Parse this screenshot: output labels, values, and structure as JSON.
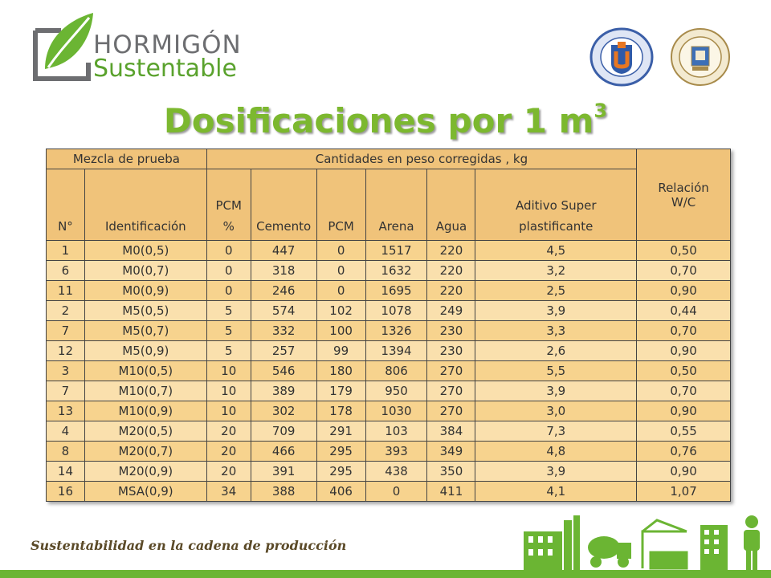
{
  "brand": {
    "line1": "HORMIGÓN",
    "line2": "Sustentable"
  },
  "seals": [
    {
      "name": "Universidad Católica del Norte",
      "text": "UNIVERSIDAD CATOLICA DEL NORTE"
    },
    {
      "name": "Universidad Politécnica de Madrid",
      "text": "UNIVERSIDAD POLITECNICA"
    }
  ],
  "title": {
    "text": "Dosificaciones por 1 m",
    "sup": "3"
  },
  "table": {
    "group_headers": {
      "mezcla": "Mezcla de prueba",
      "cantidades": "Cantidades en peso corregidas , kg"
    },
    "columns": {
      "n": "N°",
      "id": "Identificación",
      "pcm_pct_1": "PCM",
      "pcm_pct_2": "%",
      "cemento": "Cemento",
      "pcm": "PCM",
      "arena": "Arena",
      "agua": "Agua",
      "aditivo_1": "Aditivo Super",
      "aditivo_2": "plastificante",
      "wc_1": "Relación",
      "wc_2": "W/C"
    },
    "rows": [
      [
        "1",
        "M0(0,5)",
        "0",
        "447",
        "0",
        "1517",
        "220",
        "4,5",
        "0,50"
      ],
      [
        "6",
        "M0(0,7)",
        "0",
        "318",
        "0",
        "1632",
        "220",
        "3,2",
        "0,70"
      ],
      [
        "11",
        "M0(0,9)",
        "0",
        "246",
        "0",
        "1695",
        "220",
        "2,5",
        "0,90"
      ],
      [
        "2",
        "M5(0,5)",
        "5",
        "574",
        "102",
        "1078",
        "249",
        "3,9",
        "0,44"
      ],
      [
        "7",
        "M5(0,7)",
        "5",
        "332",
        "100",
        "1326",
        "230",
        "3,3",
        "0,70"
      ],
      [
        "12",
        "M5(0,9)",
        "5",
        "257",
        "99",
        "1394",
        "230",
        "2,6",
        "0,90"
      ],
      [
        "3",
        "M10(0,5)",
        "10",
        "546",
        "180",
        "806",
        "270",
        "5,5",
        "0,50"
      ],
      [
        "7",
        "M10(0,7)",
        "10",
        "389",
        "179",
        "950",
        "270",
        "3,9",
        "0,70"
      ],
      [
        "13",
        "M10(0,9)",
        "10",
        "302",
        "178",
        "1030",
        "270",
        "3,0",
        "0,90"
      ],
      [
        "4",
        "M20(0,5)",
        "20",
        "709",
        "291",
        "103",
        "384",
        "7,3",
        "0,55"
      ],
      [
        "8",
        "M20(0,7)",
        "20",
        "466",
        "295",
        "393",
        "349",
        "4,8",
        "0,76"
      ],
      [
        "14",
        "M20(0,9)",
        "20",
        "391",
        "295",
        "438",
        "350",
        "3,9",
        "0,90"
      ],
      [
        "16",
        "MSA(0,9)",
        "34",
        "388",
        "406",
        "0",
        "411",
        "4,1",
        "1,07"
      ]
    ]
  },
  "footer": {
    "slogan": "Sustentabilidad en la cadena de producción"
  },
  "colors": {
    "green": "#6bb533",
    "title_green": "#7cb82f",
    "table_header": "#f0c37a",
    "table_row": "#f7d38e"
  }
}
